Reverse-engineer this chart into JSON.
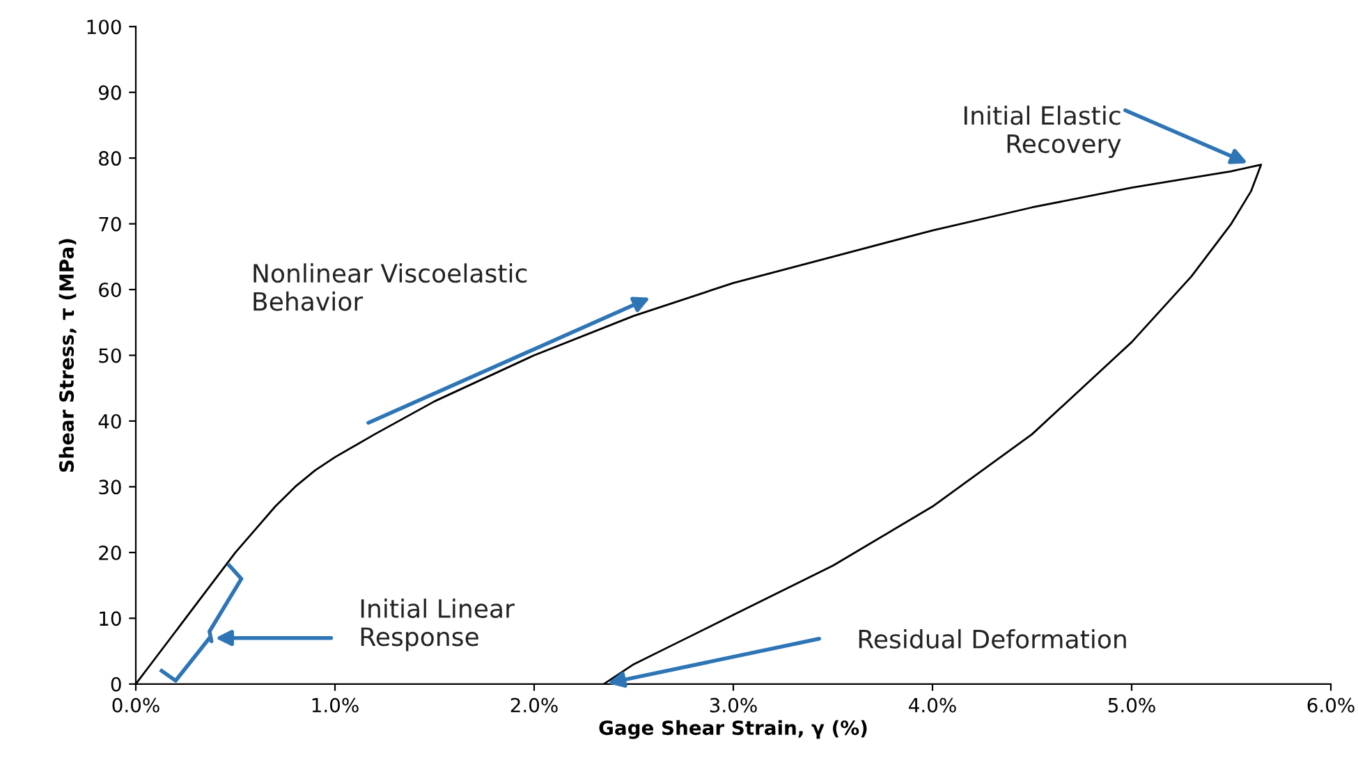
{
  "chart_data": {
    "type": "line",
    "xlabel": "Gage Shear Strain, γ (%)",
    "ylabel": "Shear Stress, τ (MPa)",
    "series": [
      {
        "color": "#000000",
        "x": [
          0,
          0.1,
          0.2,
          0.3,
          0.4,
          0.5,
          0.6,
          0.7,
          0.8,
          0.9,
          1.0,
          1.2,
          1.5,
          2.0,
          2.5,
          3.0,
          3.5,
          4.0,
          4.5,
          5.0,
          5.5,
          5.65,
          5.6,
          5.5,
          5.3,
          5.0,
          4.5,
          4.0,
          3.5,
          3.0,
          2.7,
          2.5,
          2.35
        ],
        "values": [
          0,
          4,
          8,
          12,
          16,
          20,
          23.5,
          27,
          30,
          32.5,
          34.5,
          38,
          43,
          50,
          56,
          61,
          65,
          69,
          72.5,
          75.5,
          78,
          79,
          75,
          70,
          62,
          52,
          38,
          27,
          18,
          10.5,
          6,
          3,
          0
        ]
      }
    ],
    "xlim": [
      0,
      6
    ],
    "ylim": [
      0,
      100
    ],
    "xticks": [
      {
        "value": 0,
        "label": "0.0%"
      },
      {
        "value": 1,
        "label": "1.0%"
      },
      {
        "value": 2,
        "label": "2.0%"
      },
      {
        "value": 3,
        "label": "3.0%"
      },
      {
        "value": 4,
        "label": "4.0%"
      },
      {
        "value": 5,
        "label": "5.0%"
      },
      {
        "value": 6,
        "label": "6.0%"
      }
    ],
    "yticks": [
      0,
      10,
      20,
      30,
      40,
      50,
      60,
      70,
      80,
      90,
      100
    ],
    "grid": false,
    "marker": "none",
    "line_style": "solid",
    "annotations": [
      "Initial Elastic\nRecovery",
      "Nonlinear Viscoelastic\nBehavior",
      "Initial Linear\nResponse",
      "Residual Deformation"
    ]
  }
}
